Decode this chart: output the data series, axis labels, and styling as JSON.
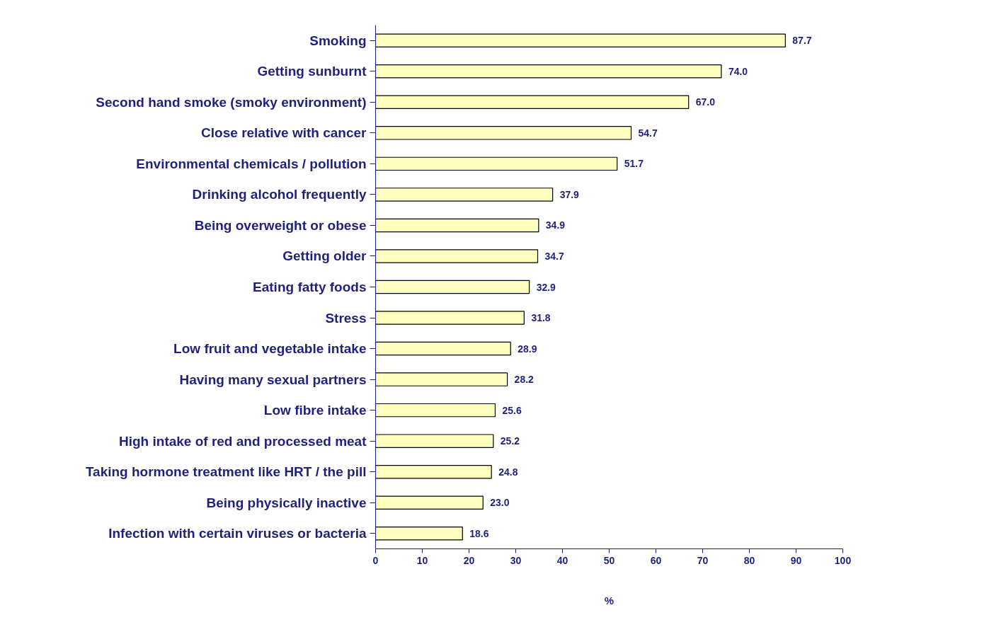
{
  "chart_data": {
    "type": "bar",
    "orientation": "horizontal",
    "xlabel": "%",
    "categories": [
      "Smoking",
      "Getting sunburnt",
      "Second hand smoke (smoky environment)",
      "Close relative with cancer",
      "Environmental chemicals / pollution",
      "Drinking alcohol frequently",
      "Being overweight or obese",
      "Getting older",
      "Eating fatty foods",
      "Stress",
      "Low fruit and vegetable intake",
      "Having many sexual partners",
      "Low fibre intake",
      "High intake of red and processed meat",
      "Taking hormone treatment like HRT / the pill",
      "Being physically inactive",
      "Infection with certain viruses or bacteria"
    ],
    "values": [
      87.7,
      74.0,
      67.0,
      54.7,
      51.7,
      37.9,
      34.9,
      34.7,
      32.9,
      31.8,
      28.9,
      28.2,
      25.6,
      25.2,
      24.8,
      23.0,
      18.6
    ],
    "value_labels": [
      "87.7",
      "74.0",
      "67.0",
      "54.7",
      "51.7",
      "37.9",
      "34.9",
      "34.7",
      "32.9",
      "31.8",
      "28.9",
      "28.2",
      "25.6",
      "25.2",
      "24.8",
      "23.0",
      "18.6"
    ],
    "color": "#ffffc0",
    "xlim": [
      0,
      100
    ],
    "xticks": [
      0,
      10,
      20,
      30,
      40,
      50,
      60,
      70,
      80,
      90,
      100
    ],
    "grid": false
  }
}
